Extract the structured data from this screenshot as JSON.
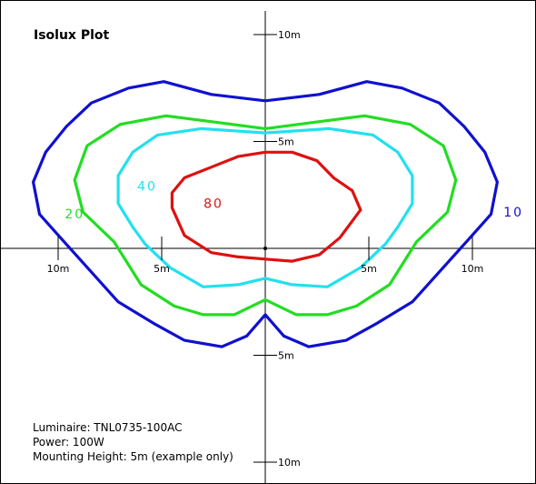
{
  "chart_data": {
    "type": "isolux-contour",
    "title": "Isolux Plot",
    "x_ticks": [
      {
        "label": "10m",
        "value": -10
      },
      {
        "label": "5m",
        "value": -5
      },
      {
        "label": "5m",
        "value": 5
      },
      {
        "label": "10m",
        "value": 10
      }
    ],
    "y_ticks": [
      {
        "label": "10m",
        "value": 10
      },
      {
        "label": "5m",
        "value": 5
      },
      {
        "label": "5m",
        "value": -5
      },
      {
        "label": "10m",
        "value": -10
      }
    ],
    "contours": [
      {
        "level": "10",
        "color": "#1010d0",
        "points": [
          [
            -8.4,
            -1.1
          ],
          [
            -7.1,
            -2.5
          ],
          [
            -5.4,
            -3.5
          ],
          [
            -3.9,
            -4.3
          ],
          [
            -2.1,
            -4.6
          ],
          [
            -0.9,
            -4.1
          ],
          [
            0,
            -3.1
          ],
          [
            0.9,
            -4.1
          ],
          [
            2.1,
            -4.6
          ],
          [
            3.9,
            -4.3
          ],
          [
            5.4,
            -3.5
          ],
          [
            7.1,
            -2.5
          ],
          [
            8.4,
            -1.1
          ],
          [
            9.8,
            0.4
          ],
          [
            10.9,
            1.6
          ],
          [
            11.2,
            3.1
          ],
          [
            10.6,
            4.5
          ],
          [
            9.6,
            5.7
          ],
          [
            8.4,
            6.8
          ],
          [
            6.6,
            7.5
          ],
          [
            4.9,
            7.8
          ],
          [
            2.6,
            7.2
          ],
          [
            0,
            6.9
          ],
          [
            -2.6,
            7.2
          ],
          [
            -4.9,
            7.8
          ],
          [
            -6.6,
            7.5
          ],
          [
            -8.4,
            6.8
          ],
          [
            -9.6,
            5.7
          ],
          [
            -10.6,
            4.5
          ],
          [
            -11.2,
            3.1
          ],
          [
            -10.9,
            1.6
          ],
          [
            -9.8,
            0.4
          ]
        ]
      },
      {
        "level": "20",
        "color": "#22dd22",
        "points": [
          [
            -7.3,
            0.3
          ],
          [
            -6.0,
            -1.7
          ],
          [
            -4.4,
            -2.7
          ],
          [
            -3.0,
            -3.1
          ],
          [
            -1.5,
            -3.1
          ],
          [
            0,
            -2.4
          ],
          [
            1.5,
            -3.1
          ],
          [
            3.0,
            -3.1
          ],
          [
            4.4,
            -2.7
          ],
          [
            6.0,
            -1.7
          ],
          [
            7.3,
            0.3
          ],
          [
            8.8,
            1.7
          ],
          [
            9.2,
            3.2
          ],
          [
            8.6,
            4.8
          ],
          [
            7.0,
            5.8
          ],
          [
            4.8,
            6.2
          ],
          [
            2.4,
            5.9
          ],
          [
            0,
            5.6
          ],
          [
            -2.4,
            5.9
          ],
          [
            -4.8,
            6.2
          ],
          [
            -7.0,
            5.8
          ],
          [
            -8.6,
            4.8
          ],
          [
            -9.2,
            3.2
          ],
          [
            -8.8,
            1.7
          ]
        ]
      },
      {
        "level": "40",
        "color": "#22e0ee",
        "points": [
          [
            -6.4,
            1.0
          ],
          [
            -5.8,
            0.2
          ],
          [
            -4.6,
            -0.9
          ],
          [
            -3.0,
            -1.8
          ],
          [
            -1.3,
            -1.7
          ],
          [
            0,
            -1.4
          ],
          [
            1.3,
            -1.7
          ],
          [
            3.0,
            -1.8
          ],
          [
            4.6,
            -0.9
          ],
          [
            5.8,
            0.2
          ],
          [
            6.4,
            1.0
          ],
          [
            7.1,
            2.1
          ],
          [
            7.1,
            3.4
          ],
          [
            6.4,
            4.5
          ],
          [
            5.2,
            5.3
          ],
          [
            3.1,
            5.6
          ],
          [
            0,
            5.4
          ],
          [
            -3.1,
            5.6
          ],
          [
            -5.2,
            5.3
          ],
          [
            -6.4,
            4.5
          ],
          [
            -7.1,
            3.4
          ],
          [
            -7.1,
            2.1
          ]
        ]
      },
      {
        "level": "80",
        "color": "#dd1111",
        "points": [
          [
            -4.5,
            1.9
          ],
          [
            -3.9,
            0.6
          ],
          [
            -2.6,
            -0.2
          ],
          [
            -1.3,
            -0.4
          ],
          [
            0,
            -0.5
          ],
          [
            1.3,
            -0.6
          ],
          [
            2.6,
            -0.3
          ],
          [
            3.6,
            0.5
          ],
          [
            4.6,
            1.8
          ],
          [
            4.2,
            2.7
          ],
          [
            3.3,
            3.3
          ],
          [
            2.5,
            4.1
          ],
          [
            1.3,
            4.5
          ],
          [
            0,
            4.5
          ],
          [
            -1.3,
            4.3
          ],
          [
            -2.6,
            3.8
          ],
          [
            -3.9,
            3.3
          ],
          [
            -4.5,
            2.6
          ]
        ]
      }
    ]
  },
  "info": {
    "luminaire": "Luminaire:  TNL0735-100AC",
    "power": "Power:  100W",
    "mounting_height": "Mounting Height:  5m (example only)"
  }
}
